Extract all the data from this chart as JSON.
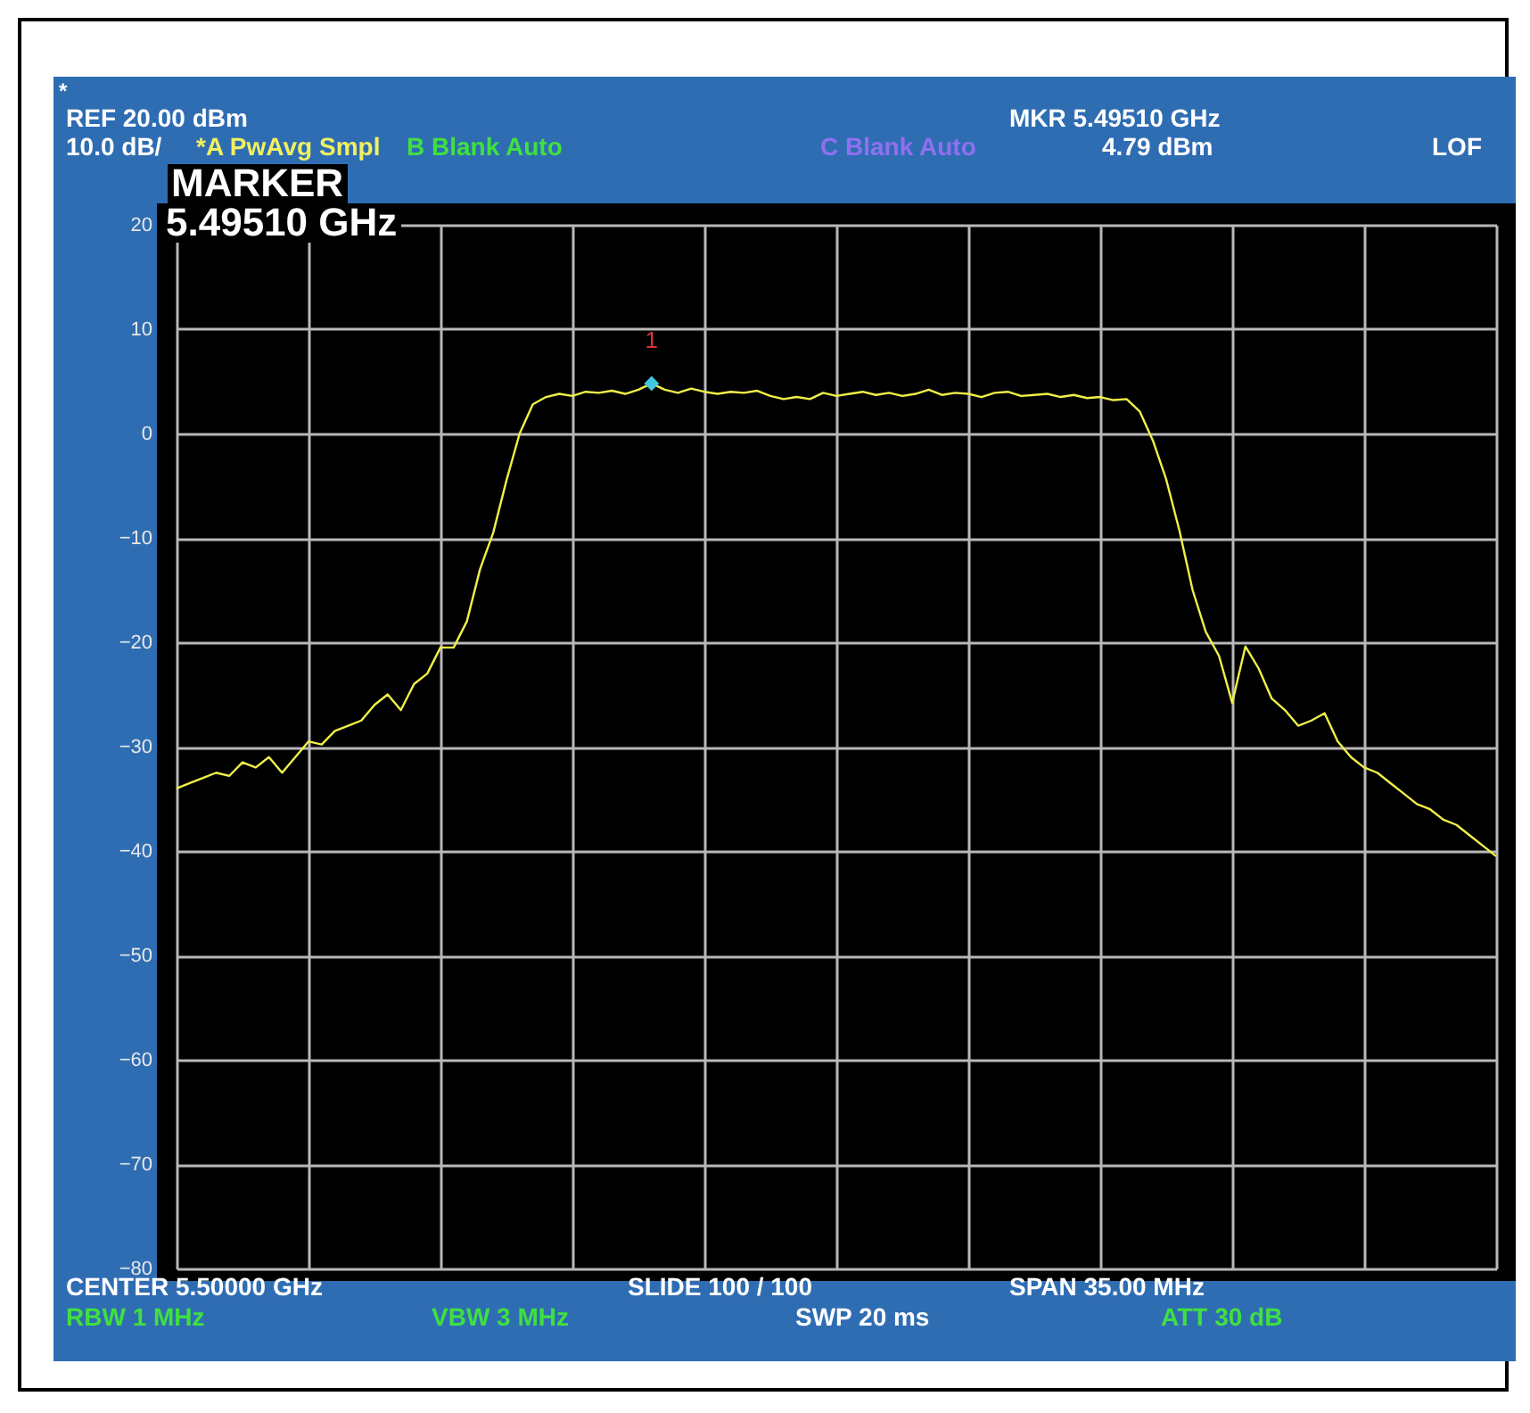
{
  "chart_data": {
    "type": "line",
    "categories": [
      null,
      null,
      null,
      null,
      null,
      null,
      null,
      null,
      null,
      null,
      null,
      null,
      null,
      null,
      null,
      null,
      null,
      null,
      null,
      null,
      null,
      null,
      null,
      null,
      null,
      null,
      null,
      null,
      null,
      null,
      null,
      null,
      null,
      null,
      null,
      null,
      null,
      null,
      null,
      null,
      null,
      null,
      null,
      null,
      null,
      null,
      null,
      null,
      null,
      null,
      null,
      null,
      null,
      null,
      null,
      null,
      null,
      null,
      null,
      null,
      null,
      null,
      null,
      null,
      null,
      null,
      null,
      null,
      null,
      null,
      null,
      null,
      null,
      null,
      null,
      null,
      null,
      null,
      null,
      null,
      null,
      null,
      null,
      null,
      null,
      null,
      null,
      null,
      null,
      null,
      null,
      null,
      null,
      null,
      null,
      null,
      null,
      null,
      null,
      null,
      null
    ],
    "series": [
      {
        "color": "#f0f048",
        "values": [
          -34,
          -33.5,
          -33,
          -32.5,
          -32.8,
          -31.5,
          -32,
          -31,
          -32.5,
          -31,
          -29.5,
          -29.8,
          -28.5,
          -28,
          -27.5,
          -26,
          -25,
          -26.5,
          -24,
          -23,
          -20.5,
          -20.5,
          -18,
          -13,
          -9.5,
          -4.5,
          0,
          2.8,
          3.5,
          3.8,
          3.6,
          4,
          3.9,
          4.1,
          3.8,
          4.2,
          4.79,
          4.2,
          3.9,
          4.3,
          4,
          3.8,
          4,
          3.9,
          4.1,
          3.6,
          3.3,
          3.5,
          3.3,
          3.9,
          3.6,
          3.8,
          4,
          3.7,
          3.9,
          3.6,
          3.8,
          4.2,
          3.7,
          3.9,
          3.8,
          3.5,
          3.9,
          4,
          3.6,
          3.7,
          3.8,
          3.5,
          3.7,
          3.4,
          3.5,
          3.2,
          3.3,
          2.1,
          -0.7,
          -4.4,
          -9.3,
          -15,
          -19,
          -21.3,
          -25.8,
          -20.4,
          -22.5,
          -25.4,
          -26.5,
          -28,
          -27.5,
          -26.8,
          -29.5,
          -31,
          -32,
          -32.5,
          -33.5,
          -34.5,
          -35.5,
          -36,
          -37,
          -37.5,
          -38.5,
          -39.5,
          -40.5
        ]
      },
      {
        "type": "scatter",
        "marker": "diamond",
        "color": "#40c8e0",
        "values": [
          null,
          null,
          null,
          null,
          null,
          null,
          null,
          null,
          null,
          null,
          null,
          null,
          null,
          null,
          null,
          null,
          null,
          null,
          null,
          null,
          null,
          null,
          null,
          null,
          null,
          null,
          null,
          null,
          null,
          null,
          null,
          null,
          null,
          null,
          null,
          null,
          4.79,
          null,
          null,
          null,
          null,
          null,
          null,
          null,
          null,
          null,
          null,
          null,
          null,
          null,
          null,
          null,
          null,
          null,
          null,
          null,
          null,
          null,
          null,
          null,
          null,
          null,
          null,
          null,
          null,
          null,
          null,
          null,
          null,
          null,
          null,
          null,
          null,
          null,
          null,
          null,
          null,
          null,
          null,
          null,
          null,
          null,
          null,
          null,
          null,
          null,
          null,
          null,
          null,
          null,
          null,
          null,
          null,
          null,
          null,
          null,
          null,
          null,
          null,
          null,
          null
        ]
      }
    ],
    "ylim": [
      -80,
      20
    ],
    "yticks": [
      -80,
      -70,
      -60,
      -50,
      -40,
      -30,
      -20,
      -10,
      0,
      10,
      20
    ],
    "grid": true,
    "tick_labels": "y",
    "annotations": [
      "*",
      "REF  20.00 dBm",
      "10.0 dB/",
      "*A PwAvg Smpl",
      "B Blank Auto",
      "C Blank Auto",
      "MKR 5.49510 GHz",
      "4.79 dBm",
      "LOF",
      "MARKER",
      "5.49510 GHz",
      "CENTER 5.50000 GHz",
      "SLIDE 100 / 100",
      "SPAN 35.00 MHz",
      "RBW 1 MHz",
      "VBW 3 MHz",
      "SWP 20 ms",
      "ATT 30 dB",
      {
        "text": "1",
        "y": 4.79
      }
    ]
  }
}
